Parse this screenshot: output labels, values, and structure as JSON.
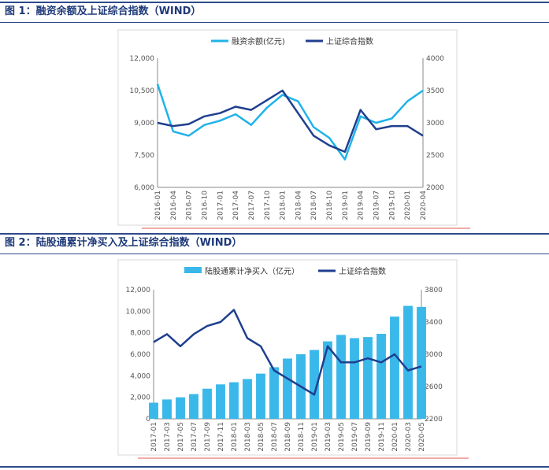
{
  "figures": [
    {
      "title": "图 1：融资余额及上证综合指数（WIND）"
    },
    {
      "title": "图 2：陆股通累计净买入及上证综合指数（WIND）"
    }
  ],
  "chart_data": [
    {
      "type": "line",
      "title": "",
      "series": [
        {
          "name": "融资余额(亿元)",
          "color": "#1fb3e8",
          "axis": "left",
          "x": [
            "2016-01",
            "2016-04",
            "2016-07",
            "2016-10",
            "2017-01",
            "2017-04",
            "2017-07",
            "2017-10",
            "2018-01",
            "2018-04",
            "2018-07",
            "2018-10",
            "2019-01",
            "2019-04",
            "2019-07",
            "2019-10",
            "2020-01",
            "2020-04"
          ],
          "values": [
            10800,
            8600,
            8400,
            8900,
            9100,
            9400,
            8900,
            9700,
            10300,
            10000,
            8800,
            8300,
            7300,
            9300,
            9000,
            9200,
            10000,
            10500
          ]
        },
        {
          "name": "上证综合指数",
          "color": "#1f3f8f",
          "axis": "right",
          "x": [
            "2016-01",
            "2016-04",
            "2016-07",
            "2016-10",
            "2017-01",
            "2017-04",
            "2017-07",
            "2017-10",
            "2018-01",
            "2018-04",
            "2018-07",
            "2018-10",
            "2019-01",
            "2019-04",
            "2019-07",
            "2019-10",
            "2020-01",
            "2020-04"
          ],
          "values": [
            3000,
            2950,
            2980,
            3100,
            3150,
            3250,
            3200,
            3350,
            3500,
            3150,
            2800,
            2650,
            2550,
            3200,
            2900,
            2950,
            2950,
            2800
          ]
        }
      ],
      "left_axis": {
        "ylim": [
          6000,
          12000
        ],
        "ticks": [
          "12,000",
          "10,500",
          "9,000",
          "7,500",
          "6,000"
        ]
      },
      "right_axis": {
        "ylim": [
          2000,
          4000
        ],
        "ticks": [
          "4000",
          "3500",
          "3000",
          "2500",
          "2000"
        ]
      },
      "x_tick_labels": [
        "2016-01",
        "2016-04",
        "2016-07",
        "2016-10",
        "2017-01",
        "2017-04",
        "2017-07",
        "2017-10",
        "2018-01",
        "2018-04",
        "2018-07",
        "2018-10",
        "2019-01",
        "2019-04",
        "2019-07",
        "2019-10",
        "2020-01",
        "2020-04"
      ],
      "legend_position": "top"
    },
    {
      "type": "bar",
      "title": "",
      "series": [
        {
          "name": "陆股通累计净买入（亿元）",
          "color": "#3ab8ea",
          "axis": "left",
          "kind": "bar",
          "x": [
            "2017-01",
            "2017-03",
            "2017-05",
            "2017-07",
            "2017-09",
            "2017-11",
            "2018-01",
            "2018-03",
            "2018-05",
            "2018-07",
            "2018-09",
            "2018-11",
            "2019-01",
            "2019-03",
            "2019-05",
            "2019-07",
            "2019-09",
            "2019-11",
            "2020-01",
            "2020-03",
            "2020-05"
          ],
          "values": [
            1500,
            1800,
            2000,
            2300,
            2800,
            3200,
            3400,
            3700,
            4200,
            4800,
            5600,
            6000,
            6400,
            7200,
            7800,
            7500,
            7600,
            7900,
            9500,
            10500,
            10400
          ]
        },
        {
          "name": "上证综合指数",
          "color": "#1f3f8f",
          "axis": "right",
          "kind": "line",
          "x": [
            "2017-01",
            "2017-03",
            "2017-05",
            "2017-07",
            "2017-09",
            "2017-11",
            "2018-01",
            "2018-03",
            "2018-05",
            "2018-07",
            "2018-09",
            "2018-11",
            "2019-01",
            "2019-03",
            "2019-05",
            "2019-07",
            "2019-09",
            "2019-11",
            "2020-01",
            "2020-03",
            "2020-05"
          ],
          "values": [
            3150,
            3250,
            3100,
            3250,
            3350,
            3400,
            3550,
            3200,
            3100,
            2800,
            2700,
            2600,
            2500,
            3100,
            2900,
            2900,
            2950,
            2900,
            3000,
            2800,
            2850
          ]
        }
      ],
      "left_axis": {
        "ylim": [
          0,
          12000
        ],
        "ticks": [
          "12,000",
          "10,000",
          "8,000",
          "6,000",
          "4,000",
          "2,000",
          "0"
        ]
      },
      "right_axis": {
        "ylim": [
          2200,
          3800
        ],
        "ticks": [
          "3800",
          "3400",
          "3000",
          "2600",
          "2200"
        ]
      },
      "x_tick_labels": [
        "2017-01",
        "2017-03",
        "2017-05",
        "2017-07",
        "2017-09",
        "2017-11",
        "2018-01",
        "2018-03",
        "2018-05",
        "2018-07",
        "2018-09",
        "2018-11",
        "2019-01",
        "2019-03",
        "2019-05",
        "2019-07",
        "2019-09",
        "2019-11",
        "2020-01",
        "2020-03",
        "2020-05"
      ],
      "legend_position": "top"
    }
  ]
}
